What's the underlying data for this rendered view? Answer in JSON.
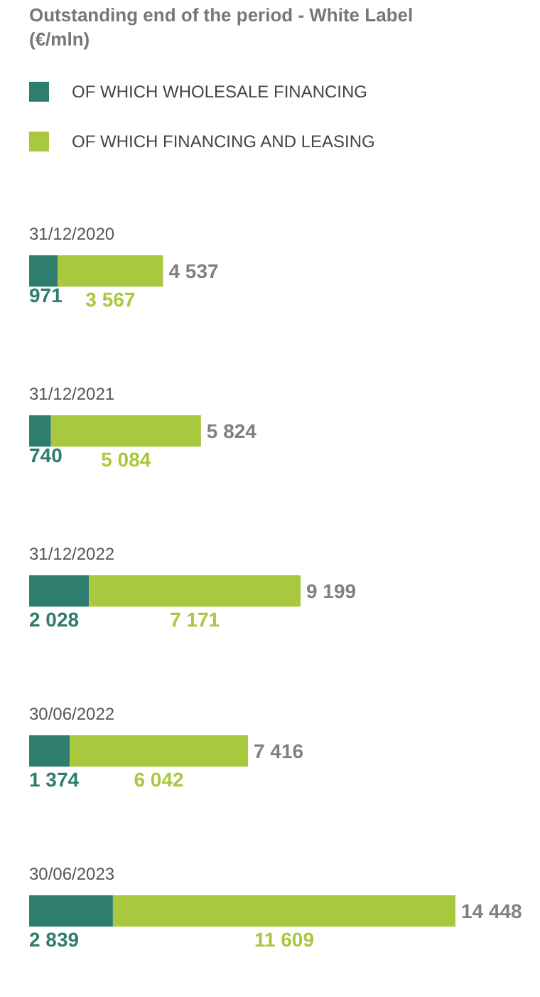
{
  "chart_data": {
    "type": "bar",
    "orientation": "horizontal",
    "stacked": true,
    "title": "Outstanding end of the period - White Label (€/mln)",
    "categories": [
      "31/12/2020",
      "31/12/2021",
      "31/12/2022",
      "30/06/2022",
      "30/06/2023"
    ],
    "series": [
      {
        "name": "OF WHICH WHOLESALE FINANCING",
        "color": "#2e7d6e",
        "values": [
          971,
          740,
          2028,
          1374,
          2839
        ],
        "value_labels": [
          "971",
          "740",
          "2 028",
          "1 374",
          "2 839"
        ]
      },
      {
        "name": "OF WHICH FINANCING AND LEASING",
        "color": "#a8c83e",
        "values": [
          3567,
          5084,
          7171,
          6042,
          11609
        ],
        "value_labels": [
          "3 567",
          "5 084",
          "7 171",
          "6 042",
          "11 609"
        ]
      }
    ],
    "totals": [
      "4 537",
      "5 824",
      "9 199",
      "7 416",
      "14 448"
    ],
    "legend": "top",
    "grid": false
  }
}
